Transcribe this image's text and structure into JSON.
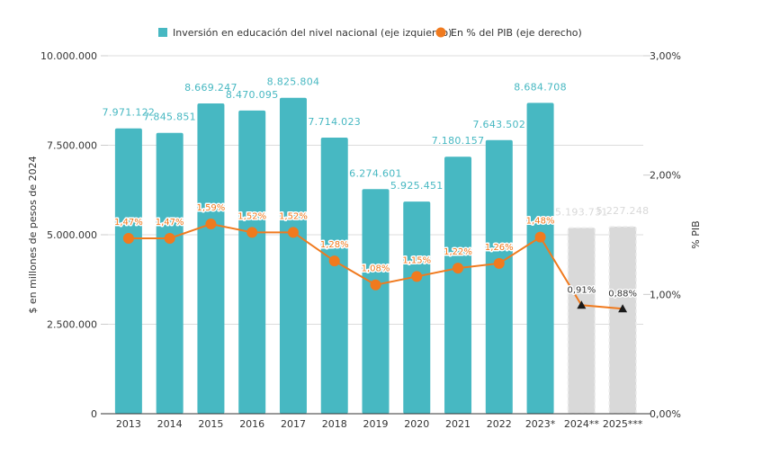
{
  "chart_data": {
    "type": "bar",
    "title": "",
    "categories": [
      "2013",
      "2014",
      "2015",
      "2016",
      "2017",
      "2018",
      "2019",
      "2020",
      "2021",
      "2022",
      "2023*",
      "2024**",
      "2025***"
    ],
    "series": [
      {
        "name": "Inversión en educación del nivel nacional (eje izquierdo)",
        "type": "bar",
        "axis": "left",
        "values": [
          7971122,
          7845851,
          8669247,
          8470095,
          8825804,
          7714023,
          6274601,
          5925451,
          7180157,
          7643502,
          8684708,
          5193731,
          5227248
        ],
        "labels": [
          "7.971.122",
          "7.845.851",
          "8.669.247",
          "8.470.095",
          "8.825.804",
          "7.714.023",
          "6.274.601",
          "5.925.451",
          "7.180.157",
          "7.643.502",
          "8.684.708",
          "5.193.731",
          "5.227.248"
        ],
        "projected": [
          false,
          false,
          false,
          false,
          false,
          false,
          false,
          false,
          false,
          false,
          false,
          true,
          true
        ]
      },
      {
        "name": "En % del PIB (eje derecho)",
        "type": "line",
        "axis": "right",
        "values": [
          1.47,
          1.47,
          1.59,
          1.52,
          1.52,
          1.28,
          1.08,
          1.15,
          1.22,
          1.26,
          1.48,
          0.91,
          0.88
        ],
        "labels": [
          "1,47%",
          "1,47%",
          "1,59%",
          "1,52%",
          "1,52%",
          "1,28%",
          "1,08%",
          "1,15%",
          "1,22%",
          "1,26%",
          "1,48%",
          "0,91%",
          "0,88%"
        ],
        "projected": [
          false,
          false,
          false,
          false,
          false,
          false,
          false,
          false,
          false,
          false,
          false,
          true,
          true
        ]
      }
    ],
    "xlabel": "",
    "ylabel": "$ en millones de pesos de 2024",
    "ylabel_right": "% PIB",
    "ylim": [
      0,
      10000000
    ],
    "ylim_right": [
      0,
      3
    ],
    "yticks": [
      "0",
      "2.500.000",
      "5.000.000",
      "7.500.000",
      "10.000.000"
    ],
    "yticks_values": [
      0,
      2500000,
      5000000,
      7500000,
      10000000
    ],
    "yticks_right": [
      "0,00%",
      "1,00%",
      "2,00%",
      "3,00%"
    ],
    "yticks_right_values": [
      0,
      1,
      2,
      3
    ],
    "grid": true,
    "legend": "top-center",
    "colors": {
      "bar": "#47B8C2",
      "bar_projected": "#D9D9D9",
      "line": "#F07A1E",
      "marker_projected": "#1A1A1A",
      "bar_label": "#47B8C2",
      "bar_label_projected": "#D9D9D9",
      "pct_label": "#F07A1E",
      "pct_label_projected": "#333333"
    }
  }
}
